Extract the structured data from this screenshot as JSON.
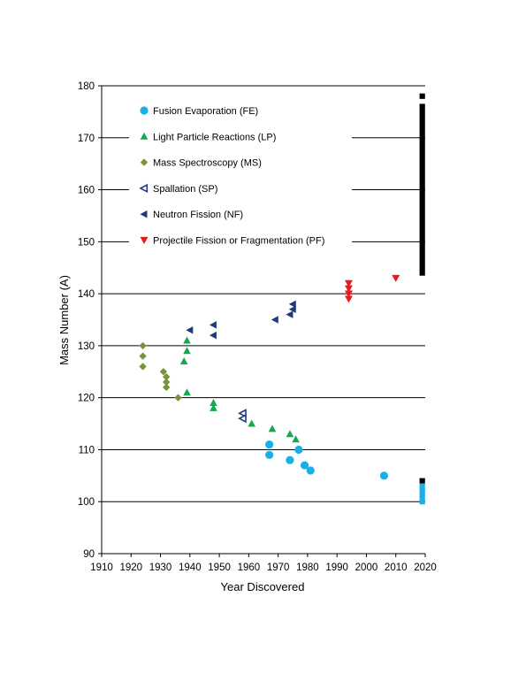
{
  "chart_data": {
    "type": "scatter",
    "xlabel": "Year Discovered",
    "ylabel": "Mass Number (A)",
    "xlim": [
      1910,
      2020
    ],
    "ylim": [
      90,
      180
    ],
    "x_ticks": [
      1910,
      1920,
      1930,
      1940,
      1950,
      1960,
      1970,
      1980,
      1990,
      2000,
      2010,
      2020
    ],
    "y_ticks": [
      90,
      100,
      110,
      120,
      130,
      140,
      150,
      160,
      170,
      180
    ],
    "grid": "horizontal major gridlines",
    "legend_position": "top-left",
    "series": [
      {
        "name": "Fusion Evaporation (FE)",
        "marker": "circle",
        "color": "#1AAFE8",
        "points": [
          [
            1967,
            111
          ],
          [
            1967,
            109
          ],
          [
            1974,
            108
          ],
          [
            1977,
            110
          ],
          [
            1979,
            107
          ],
          [
            1981,
            106
          ],
          [
            2006,
            105
          ]
        ]
      },
      {
        "name": "Light Particle Reactions (LP)",
        "marker": "triangle-up",
        "color": "#16A84C",
        "points": [
          [
            1938,
            127
          ],
          [
            1939,
            131
          ],
          [
            1939,
            129
          ],
          [
            1939,
            121
          ],
          [
            1948,
            119
          ],
          [
            1948,
            118
          ],
          [
            1961,
            115
          ],
          [
            1968,
            114
          ],
          [
            1974,
            113
          ],
          [
            1976,
            112
          ]
        ]
      },
      {
        "name": "Mass Spectroscopy (MS)",
        "marker": "diamond",
        "color": "#77933C",
        "points": [
          [
            1924,
            130
          ],
          [
            1924,
            128
          ],
          [
            1924,
            126
          ],
          [
            1931,
            125
          ],
          [
            1932,
            124
          ],
          [
            1932,
            123
          ],
          [
            1932,
            122
          ],
          [
            1936,
            120
          ]
        ]
      },
      {
        "name": "Spallation (SP)",
        "marker": "triangle-left-open",
        "color": "#1F3A7A",
        "points": [
          [
            1958,
            117
          ],
          [
            1958,
            116
          ]
        ]
      },
      {
        "name": "Neutron Fission (NF)",
        "marker": "triangle-left",
        "color": "#1F3A7A",
        "points": [
          [
            1940,
            133
          ],
          [
            1948,
            134
          ],
          [
            1948,
            132
          ],
          [
            1969,
            135
          ],
          [
            1974,
            136
          ],
          [
            1975,
            138
          ],
          [
            1975,
            137
          ]
        ]
      },
      {
        "name": "Projectile Fission or Fragmentation (PF)",
        "marker": "triangle-down",
        "color": "#E8191F",
        "points": [
          [
            1994,
            142
          ],
          [
            1994,
            141
          ],
          [
            1994,
            140
          ],
          [
            1994,
            139
          ],
          [
            2010,
            143
          ]
        ]
      }
    ],
    "undiscovered_black": {
      "marker": "square",
      "color": "#000000",
      "x": 2019,
      "values": [
        178,
        176,
        175,
        174,
        173,
        172,
        171,
        170,
        169,
        168,
        167,
        166,
        165,
        164,
        163,
        162,
        161,
        160,
        159,
        158,
        157,
        156,
        155,
        154,
        153,
        152,
        151,
        150,
        149,
        148,
        147,
        146,
        145,
        144,
        104
      ]
    },
    "undiscovered_blue": {
      "marker": "square",
      "color": "#1AAFE8",
      "x": 2019,
      "values": [
        103,
        102,
        101,
        100
      ]
    }
  }
}
